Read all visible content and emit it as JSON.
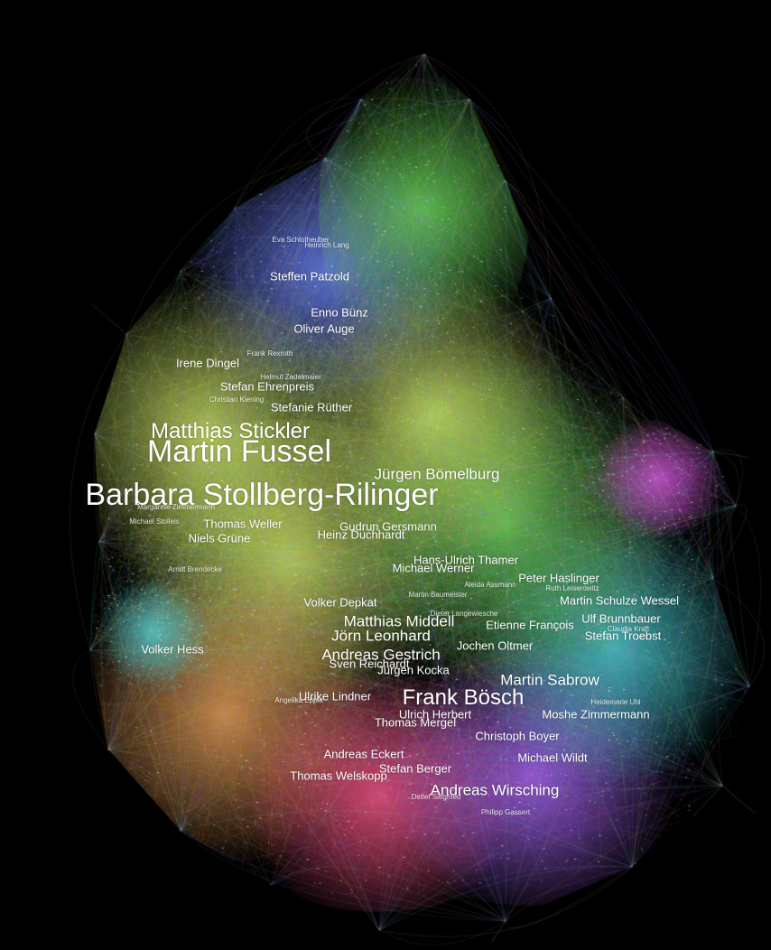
{
  "network": {
    "background": "#000000",
    "community_colors": {
      "blue": "#6f86ff",
      "green": "#6fdc5a",
      "yellow_green": "#d8f06a",
      "orange": "#f2a65a",
      "pink": "#ff5a8c",
      "purple": "#b06cff",
      "magenta": "#e05ce6",
      "cyan": "#4fd8e0"
    },
    "labels": [
      {
        "text": "Barbara Stollberg-Rilinger",
        "tier": 1
      },
      {
        "text": "Martin Fussel",
        "tier": 1
      },
      {
        "text": "Frank Bösch",
        "tier": 2
      },
      {
        "text": "Matthias Stickler",
        "tier": 2
      },
      {
        "text": "Jürgen Bömelburg",
        "tier": 3
      },
      {
        "text": "Martin Sabrow",
        "tier": 3
      },
      {
        "text": "Andreas Wirsching",
        "tier": 3
      },
      {
        "text": "Andreas Gestrich",
        "tier": 3
      },
      {
        "text": "Jörn Leonhard",
        "tier": 3
      },
      {
        "text": "Matthias Middell",
        "tier": 3
      },
      {
        "text": "Steffen Patzold",
        "tier": 4
      },
      {
        "text": "Oliver Auge",
        "tier": 4
      },
      {
        "text": "Heinz Duchhardt",
        "tier": 4
      },
      {
        "text": "Gudrun Gersmann",
        "tier": 4
      },
      {
        "text": "Thomas Weller",
        "tier": 4
      },
      {
        "text": "Sven Reichardt",
        "tier": 4
      },
      {
        "text": "Andreas Eckert",
        "tier": 4
      },
      {
        "text": "Volker Depkat",
        "tier": 4
      },
      {
        "text": "Volker Hess",
        "tier": 4
      },
      {
        "text": "Etienne François",
        "tier": 4
      },
      {
        "text": "Martin Schulze Wessel",
        "tier": 4
      },
      {
        "text": "Thomas Mergel",
        "tier": 4
      },
      {
        "text": "Stefanie Rüther",
        "tier": 4
      },
      {
        "text": "Irene Dingel",
        "tier": 4
      },
      {
        "text": "Stefan Ehrenpreis",
        "tier": 4
      },
      {
        "text": "Hans-Ulrich Thamer",
        "tier": 4
      },
      {
        "text": "Michael Werner",
        "tier": 4
      },
      {
        "text": "Peter Haslinger",
        "tier": 4
      },
      {
        "text": "Ulf Brunnbauer",
        "tier": 4
      },
      {
        "text": "Stefan Troebst",
        "tier": 4
      },
      {
        "text": "Moshe Zimmermann",
        "tier": 4
      },
      {
        "text": "Michael Wildt",
        "tier": 4
      },
      {
        "text": "Niels Grüne",
        "tier": 4
      },
      {
        "text": "Ulrich Herbert",
        "tier": 4
      },
      {
        "text": "Stefan Berger",
        "tier": 4
      },
      {
        "text": "Jürgen Kocka",
        "tier": 4
      },
      {
        "text": "Jochen Oltmer",
        "tier": 4
      },
      {
        "text": "Ulrike Lindner",
        "tier": 4
      },
      {
        "text": "Enno Bünz",
        "tier": 4
      },
      {
        "text": "Christoph Boyer",
        "tier": 4
      },
      {
        "text": "Thomas Welskopp",
        "tier": 4
      },
      {
        "text": "Dieter Langewiesche",
        "tier": 5
      },
      {
        "text": "Martin Baumeister",
        "tier": 5
      },
      {
        "text": "Aleida Assmann",
        "tier": 5
      },
      {
        "text": "Ruth Leiserowitz",
        "tier": 5
      },
      {
        "text": "Claudia Kraft",
        "tier": 5
      },
      {
        "text": "Heidemarie Uhl",
        "tier": 5
      },
      {
        "text": "Angelika Epple",
        "tier": 5
      },
      {
        "text": "Philipp Gassert",
        "tier": 5
      },
      {
        "text": "Detlef Siegfried",
        "tier": 5
      },
      {
        "text": "Frank Rexroth",
        "tier": 5
      },
      {
        "text": "Michael Stolleis",
        "tier": 5
      },
      {
        "text": "Arndt Brendecke",
        "tier": 5
      },
      {
        "text": "Margarete Zimmermann",
        "tier": 5
      },
      {
        "text": "Eva Schlotheuber",
        "tier": 5
      },
      {
        "text": "Heinrich Lang",
        "tier": 5
      },
      {
        "text": "Christian Kiening",
        "tier": 5
      },
      {
        "text": "Helmut Zedelmaier",
        "tier": 5
      }
    ]
  }
}
